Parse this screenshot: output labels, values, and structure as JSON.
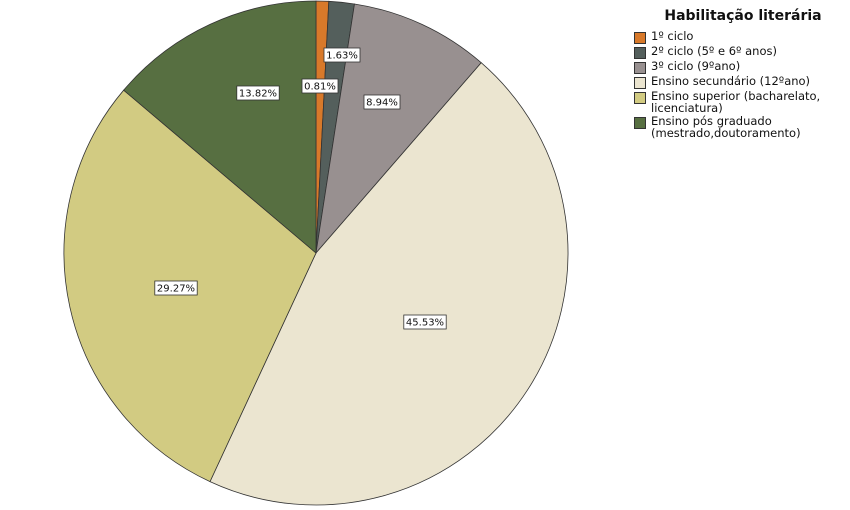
{
  "chart_data": {
    "type": "pie",
    "title": "",
    "legend_title": "Habilitação literária",
    "legend_position": "top-right",
    "start_angle_deg": 0,
    "direction": "clockwise",
    "slices": [
      {
        "label": "1º ciclo",
        "value": 0.81,
        "value_label": "0.81%",
        "color": "#d8792a"
      },
      {
        "label": "2º ciclo (5º e 6º anos)",
        "value": 1.63,
        "value_label": "1.63%",
        "color": "#545f5c"
      },
      {
        "label": "3º ciclo (9ºano)",
        "value": 8.94,
        "value_label": "8.94%",
        "color": "#989090"
      },
      {
        "label": "Ensino secundário (12ºano)",
        "value": 45.53,
        "value_label": "45.53%",
        "color": "#ebe5d0"
      },
      {
        "label": "Ensino superior (bacharelato, licenciatura)",
        "value": 29.27,
        "value_label": "29.27%",
        "color": "#d2cb82"
      },
      {
        "label": "Ensino pós graduado (mestrado,doutoramento)",
        "value": 13.82,
        "value_label": "13.82%",
        "color": "#576f41"
      }
    ]
  }
}
